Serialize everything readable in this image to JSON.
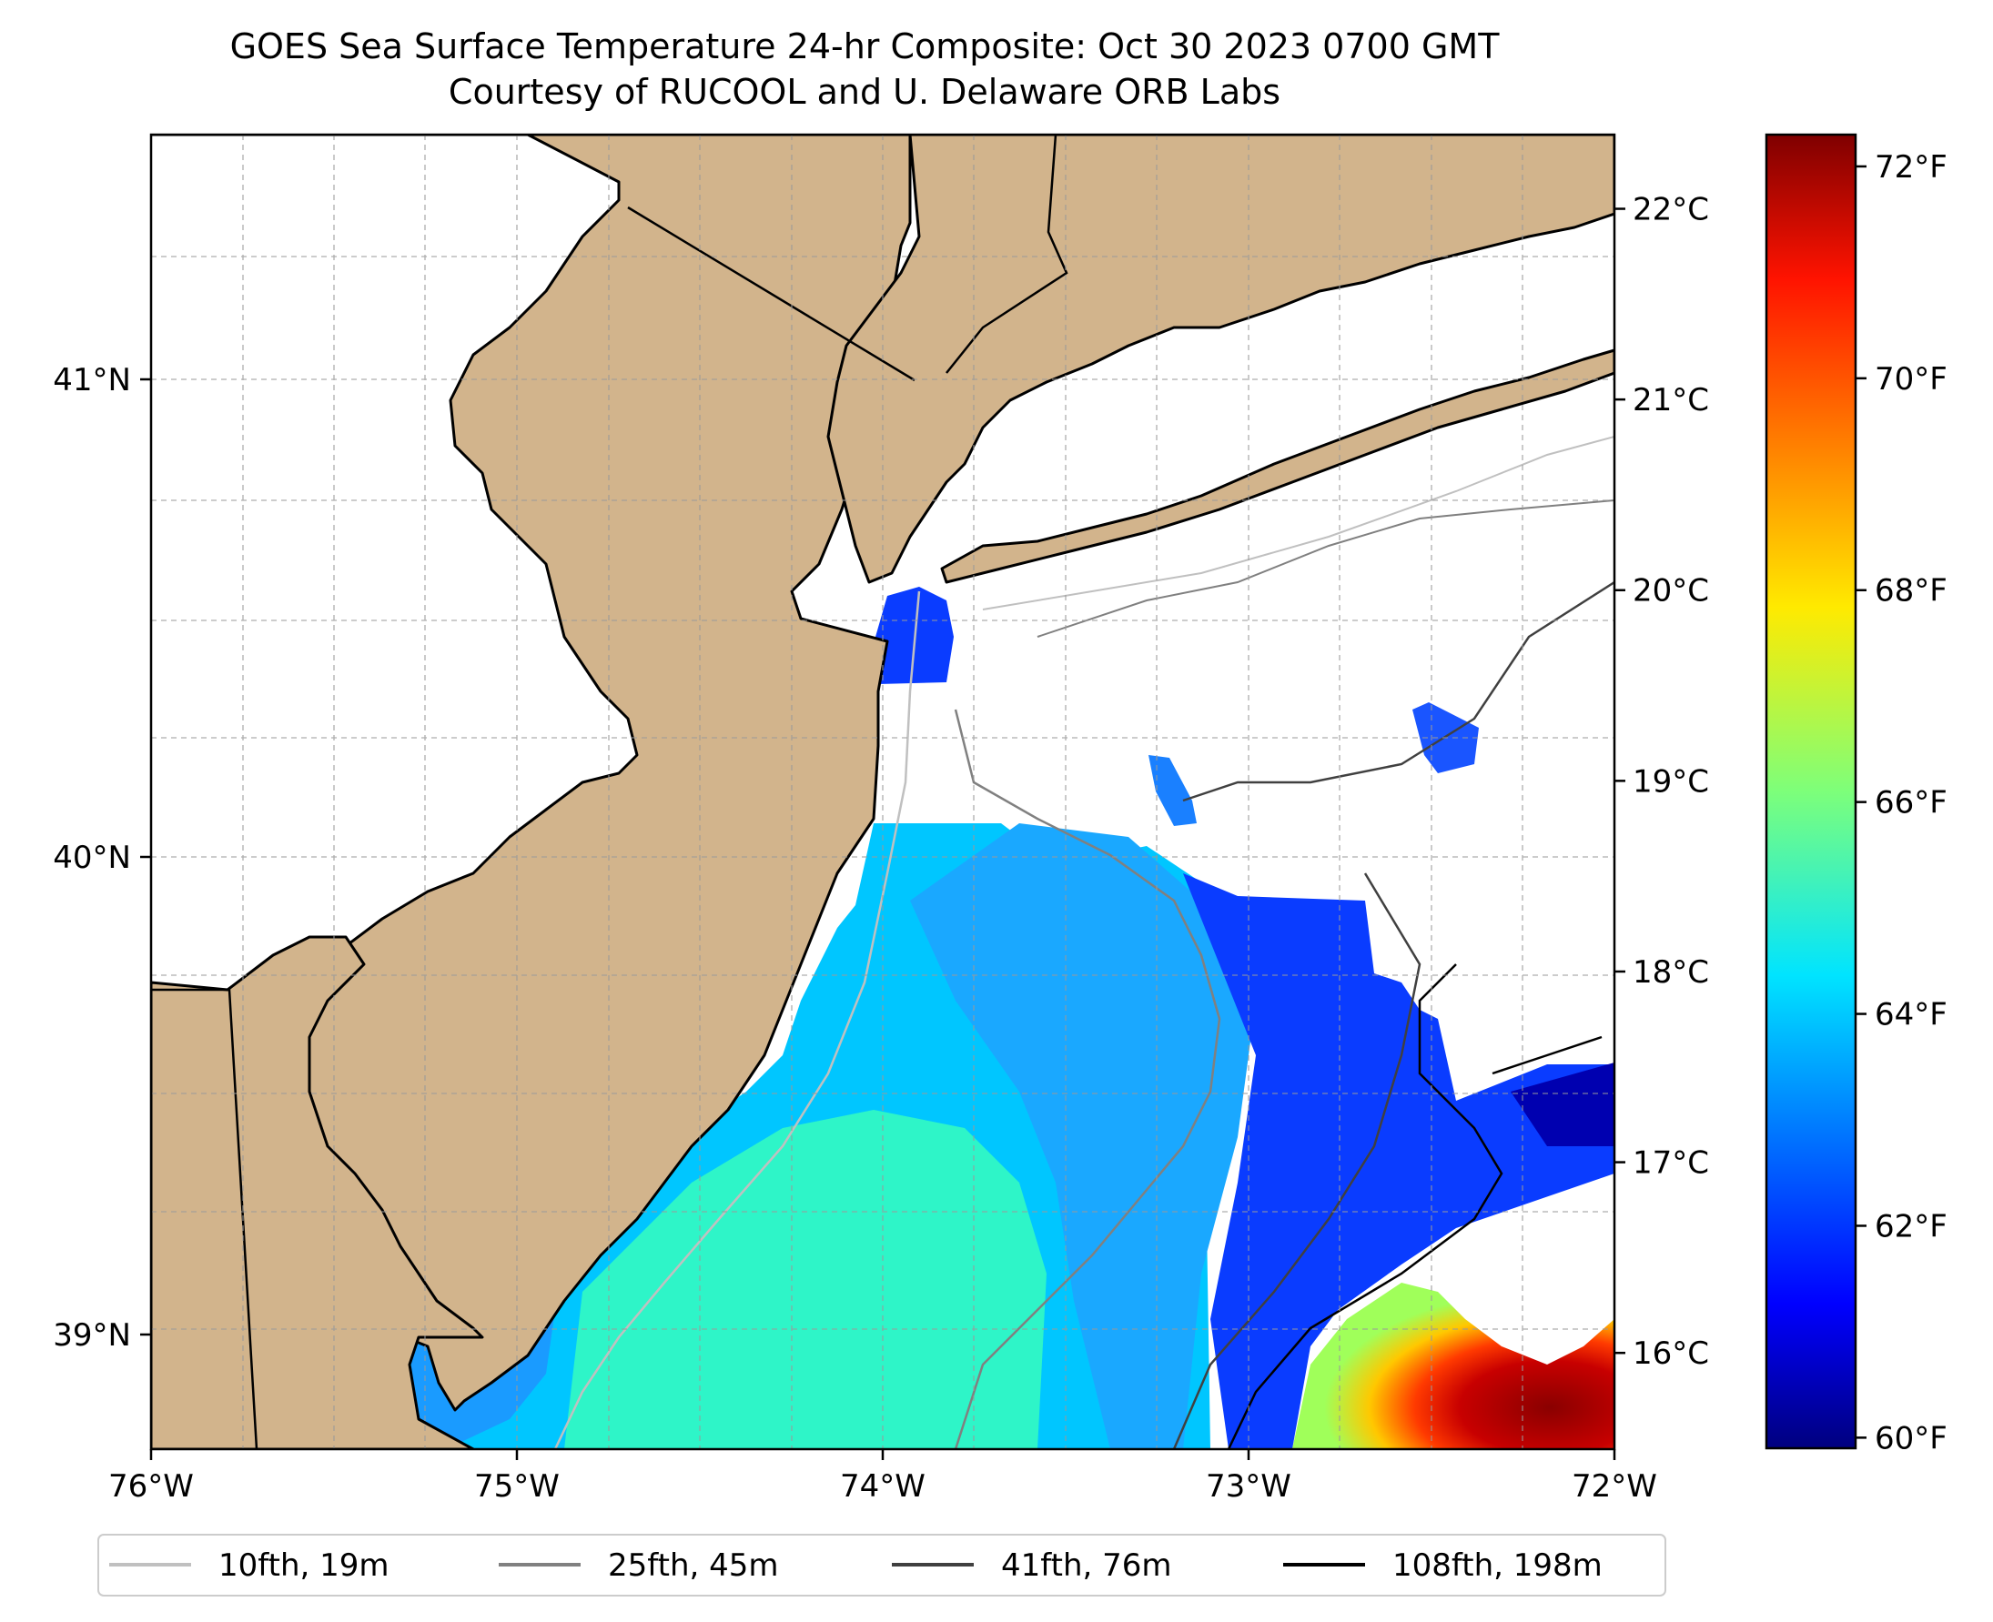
{
  "title": {
    "line1": "GOES Sea Surface Temperature 24-hr Composite: Oct 30 2023 0700 GMT",
    "line2": "Courtesy of RUCOOL and U. Delaware ORB Labs"
  },
  "map": {
    "lon_ticks": [
      {
        "value": -76,
        "label": "76°W"
      },
      {
        "value": -75,
        "label": "75°W"
      },
      {
        "value": -74,
        "label": "74°W"
      },
      {
        "value": -73,
        "label": "73°W"
      },
      {
        "value": -72,
        "label": "72°W"
      }
    ],
    "lat_ticks": [
      {
        "value": 41,
        "label": "41°N"
      },
      {
        "value": 40,
        "label": "40°N"
      },
      {
        "value": 39,
        "label": "39°N"
      }
    ],
    "lon_range": [
      -76,
      -72
    ],
    "lat_range": [
      38.75,
      41.55
    ],
    "grid": true,
    "land_color": "#d2b48c",
    "water_color": "#ffffff"
  },
  "colorbar": {
    "colormap": "jet",
    "celsius_ticks": [
      {
        "value": 22,
        "label": "22°C"
      },
      {
        "value": 21,
        "label": "21°C"
      },
      {
        "value": 20,
        "label": "20°C"
      },
      {
        "value": 19,
        "label": "19°C"
      },
      {
        "value": 18,
        "label": "18°C"
      },
      {
        "value": 17,
        "label": "17°C"
      },
      {
        "value": 16,
        "label": "16°C"
      }
    ],
    "fahrenheit_ticks": [
      {
        "value": 72,
        "label": "72°F"
      },
      {
        "value": 70,
        "label": "70°F"
      },
      {
        "value": 68,
        "label": "68°F"
      },
      {
        "value": 66,
        "label": "66°F"
      },
      {
        "value": 64,
        "label": "64°F"
      },
      {
        "value": 62,
        "label": "62°F"
      },
      {
        "value": 60,
        "label": "60°F"
      }
    ],
    "range_f": [
      59.9,
      72.3
    ]
  },
  "legend": {
    "placement": "bottom",
    "items": [
      {
        "label": "10fth, 19m",
        "color": "#c0c0c0"
      },
      {
        "label": "25fth, 45m",
        "color": "#808080"
      },
      {
        "label": "41fth, 76m",
        "color": "#404040"
      },
      {
        "label": "108fth, 198m",
        "color": "#000000"
      }
    ]
  }
}
